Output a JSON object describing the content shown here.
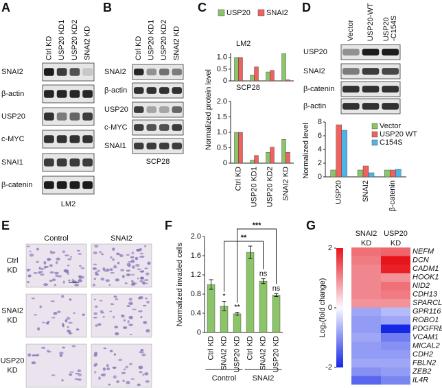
{
  "panel_letters": [
    "A",
    "B",
    "C",
    "D",
    "E",
    "F",
    "G"
  ],
  "blot_a": {
    "columns": [
      "Ctrl KD",
      "USP20 KD1",
      "USP20 KD2",
      "SNAI2 KD"
    ],
    "rows": [
      "SNAI2",
      "β-actin",
      "USP20",
      "c-MYC",
      "SNAI1",
      "β-catenin"
    ],
    "caption": "LM2"
  },
  "blot_b": {
    "columns": [
      "Ctrl KD",
      "USP20 KD1",
      "USP20 KD2",
      "SNAI2 KD"
    ],
    "rows": [
      "SNAI2",
      "β-actin",
      "USP20",
      "c-MYC",
      "SNAI1"
    ],
    "caption": "SCP28"
  },
  "blot_d": {
    "columns": [
      [
        "Vector"
      ],
      [
        "USP20-WT"
      ],
      [
        "USP20",
        "-C154S"
      ]
    ],
    "rows": [
      "USP20",
      "SNAI2",
      "β-catenin",
      "β-actin"
    ]
  },
  "micrographs_e": {
    "columns": [
      "Control",
      "SNAI2"
    ],
    "rows": [
      [
        "Ctrl",
        "KD"
      ],
      [
        "SNAI2",
        "KD"
      ],
      [
        "USP20",
        "KD"
      ]
    ]
  },
  "chart_data": [
    {
      "type": "bar",
      "title": "LM2",
      "ylabel": "Normalized protein level",
      "series": [
        {
          "name": "USP20",
          "color": "#8cc46a",
          "values": [
            1.0,
            0.25,
            0.38,
            1.17
          ]
        },
        {
          "name": "SNAI2",
          "color": "#f0625f",
          "values": [
            1.0,
            0.6,
            0.45,
            0.05
          ]
        }
      ],
      "ylim": [
        0,
        1.2
      ],
      "yticks": [
        0,
        0.5,
        {
          "value": 1,
          "label": "1.0"
        }
      ]
    },
    {
      "type": "bar",
      "title": "SCP28",
      "categories": [
        "Ctrl KD",
        "USP20 KD1",
        "USP20 KD2",
        "SNAI2 KD"
      ],
      "series": [
        {
          "color": "#8cc46a",
          "values": [
            1.0,
            0.1,
            0.35,
            0.77
          ]
        },
        {
          "color": "#f0625f",
          "values": [
            1.0,
            0.25,
            0.52,
            0.35
          ]
        }
      ],
      "ylim": [
        0,
        2
      ],
      "yticks": [
        0,
        0.5,
        {
          "value": 1,
          "label": "1.0"
        },
        1.5,
        {
          "value": 2,
          "label": "2.0"
        }
      ]
    },
    {
      "type": "bar",
      "ylabel": "Normalized level",
      "categories": [
        "USP20",
        "SNAI2",
        "β-catenin"
      ],
      "series": [
        {
          "name": "Vector",
          "color": "#8cc46a",
          "values": [
            1.0,
            1.0,
            1.0
          ]
        },
        {
          "name": "USP20 WT",
          "color": "#f0625f",
          "values": [
            7.6,
            1.6,
            1.0
          ]
        },
        {
          "name": "C154S",
          "color": "#4fb3e8",
          "values": [
            6.8,
            0.6,
            1.1
          ]
        }
      ],
      "ylim": [
        0,
        8
      ],
      "yticks": [
        0,
        2,
        4,
        6,
        8
      ]
    },
    {
      "type": "bar",
      "ylabel": "Normalized invaded cells",
      "color": "#8cc46a",
      "categories": [
        "Ctrl KD",
        "SNAI2 KD",
        "USP20 KD",
        "Ctrl KD",
        "SNAI2 KD",
        "USP20 KD"
      ],
      "values": [
        1.0,
        0.55,
        0.39,
        1.67,
        1.07,
        0.78
      ],
      "errors": [
        0.1,
        0.1,
        0.03,
        0.13,
        0.05,
        0.03
      ],
      "annotations": [
        null,
        "*",
        "**",
        null,
        "ns",
        "ns"
      ],
      "groups": [
        "Control",
        "SNAI2"
      ],
      "brackets": [
        "**",
        "***"
      ],
      "ylim": [
        0,
        2
      ],
      "yticks": [
        0,
        0.4,
        0.8,
        1.2,
        1.6,
        {
          "value": 2,
          "label": "2.0"
        }
      ]
    },
    {
      "type": "heatmap",
      "colorbar_label": "Log₂(fold change)",
      "columns": [
        [
          "SNAI2",
          "KD"
        ],
        [
          "USP20",
          "KD"
        ]
      ],
      "rows": [
        "NEFM",
        "DCN",
        "CADM1",
        "HOOK1",
        "NID2",
        "CDH13",
        "SPARCL1",
        "GPR116",
        "ROBO1",
        "PDGFRB",
        "VCAM1",
        "MICAL2",
        "CDH2",
        "FBLN2",
        "ZEB2",
        "IL4R"
      ],
      "values": [
        [
          1.2,
          1.3
        ],
        [
          1.1,
          2.0
        ],
        [
          1.0,
          1.9
        ],
        [
          1.0,
          0.9
        ],
        [
          1.0,
          1.2
        ],
        [
          1.0,
          1.1
        ],
        [
          0.9,
          0.9
        ],
        [
          -0.8,
          -0.6
        ],
        [
          -0.9,
          -0.8
        ],
        [
          -0.9,
          -2.0
        ],
        [
          -0.8,
          -1.2
        ],
        [
          -0.9,
          -1.0
        ],
        [
          -0.9,
          -0.9
        ],
        [
          -0.8,
          -0.8
        ],
        [
          -1.0,
          -0.9
        ],
        [
          -1.4,
          -1.1
        ]
      ],
      "clim": [
        -2,
        2
      ],
      "cticks": [
        -2,
        0,
        2
      ]
    }
  ]
}
